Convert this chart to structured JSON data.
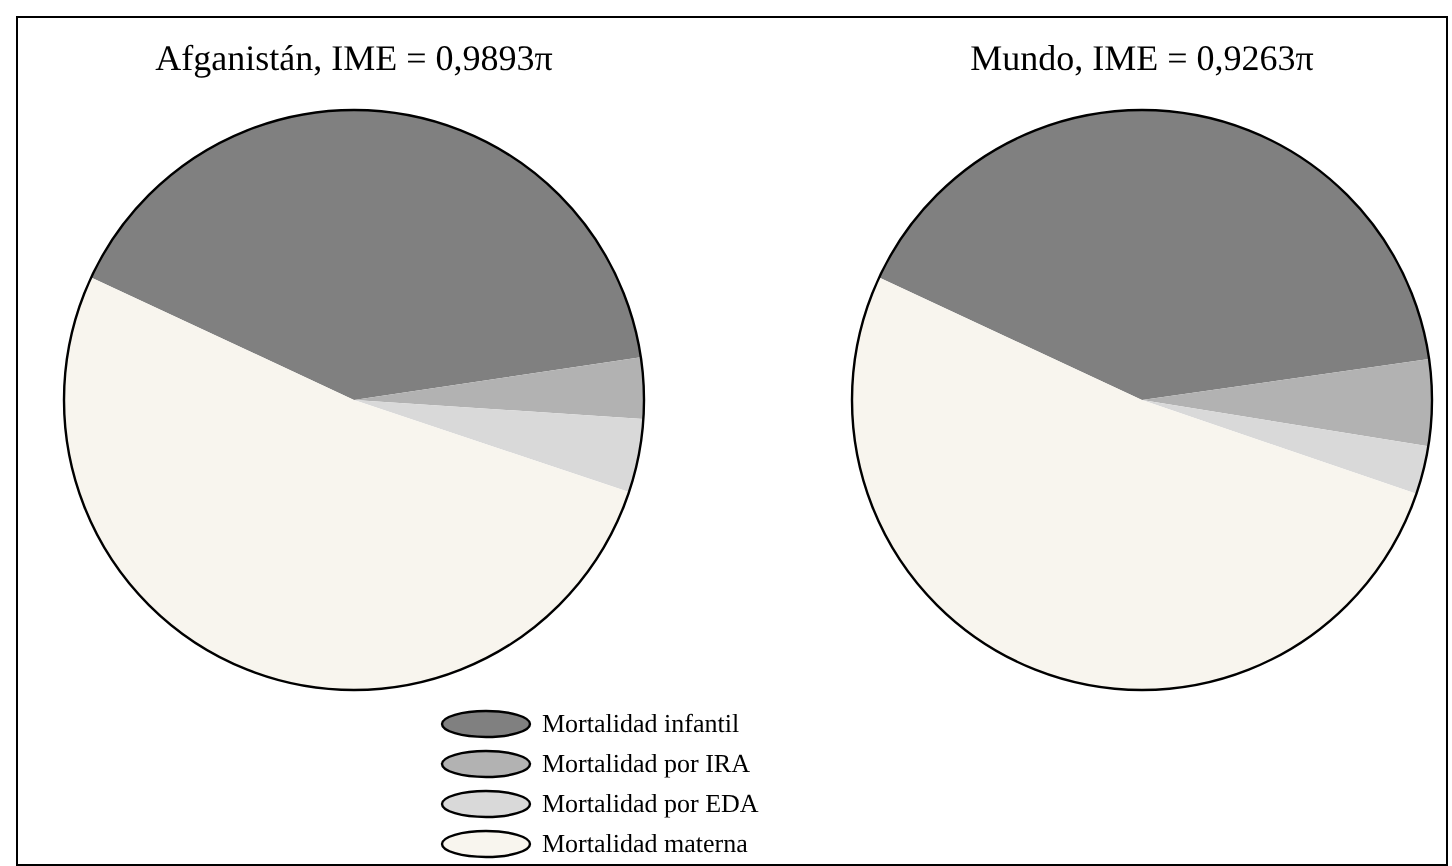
{
  "chart_data": [
    {
      "type": "pie",
      "title": "Afganistán, IME = 0,9893π",
      "categories": [
        "Mortalidad infantil",
        "Mortalidad por IRA",
        "Mortalidad por EDA",
        "Mortalidad materna"
      ],
      "values": [
        40.7,
        3.4,
        4.1,
        51.8
      ],
      "colors": [
        "#808080",
        "#b2b2b2",
        "#d9d9d9",
        "#f8f5ee"
      ],
      "legend": "bottom"
    },
    {
      "type": "pie",
      "title": "Mundo, IME = 0,9263π",
      "categories": [
        null,
        null,
        null,
        null
      ],
      "values": [
        40.8,
        4.8,
        2.7,
        51.7
      ],
      "colors": [
        "#808080",
        "#b2b2b2",
        "#d9d9d9",
        "#f8f5ee"
      ]
    }
  ]
}
